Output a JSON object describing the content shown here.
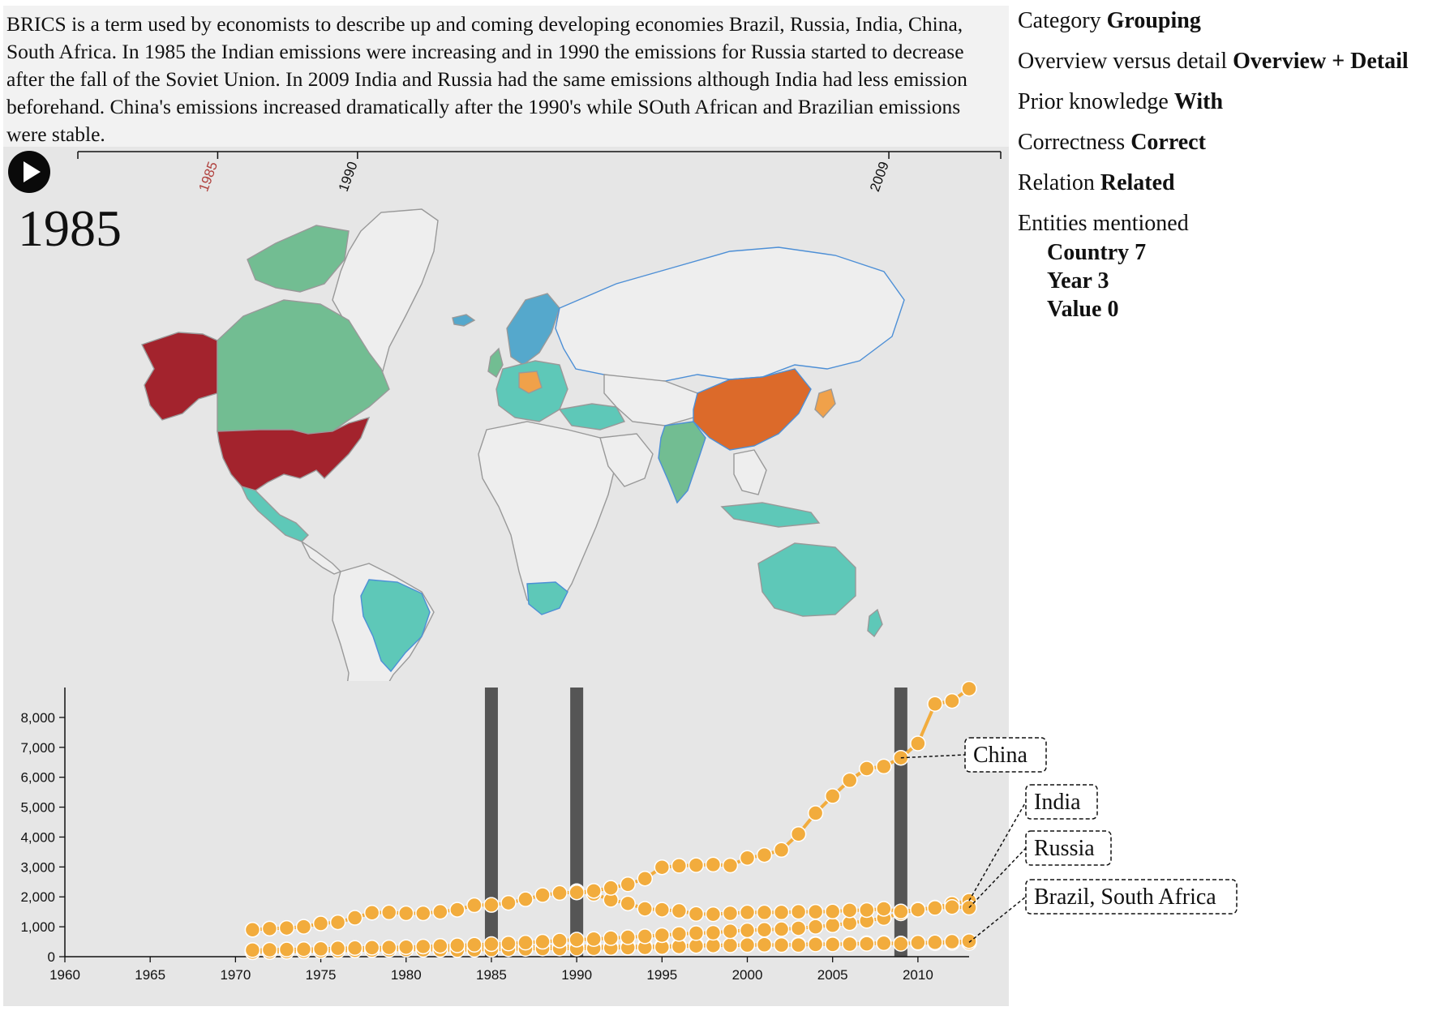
{
  "story": {
    "text": "BRICS is a term used by economists to describe up and coming developing economies Brazil, Russia, India, China, South Africa. In 1985 the Indian emissions were increasing and in 1990 the emissions for Russia started to decrease after the fall of the Soviet Union. In 2009 India and Russia had the same emissions although India had less emission beforehand. China's emissions increased dramatically after the 1990's while SOuth African and Brazilian emissions were stable."
  },
  "timeline": {
    "marks": [
      "1985",
      "1990",
      "2009"
    ],
    "active": "1985",
    "active_color": "#b0413e",
    "inactive_color": "#111111"
  },
  "current_year": "1985",
  "controls": {
    "play_icon": "play-icon"
  },
  "meta": {
    "category_label": "Category",
    "category_value": "Grouping",
    "overview_label": "Overview versus detail",
    "overview_value": "Overview + Detail",
    "prior_label": "Prior knowledge",
    "prior_value": "With",
    "correctness_label": "Correctness",
    "correctness_value": "Correct",
    "relation_label": "Relation",
    "relation_value": "Related",
    "entities_label": "Entities mentioned",
    "entities": [
      {
        "name": "Country",
        "count": "7"
      },
      {
        "name": "Year",
        "count": "3"
      },
      {
        "name": "Value",
        "count": "0"
      }
    ]
  },
  "map": {
    "colors": {
      "high": "#a3232d",
      "china": "#dc6a2a",
      "mid": "#f0a14a",
      "green": "#72bd92",
      "teal": "#5ec8b8",
      "blue": "#55a8cc",
      "none": "#eeeeee",
      "border": "#999999",
      "brics_border": "#4d8fd6"
    }
  },
  "chart_data": {
    "type": "line",
    "x_range": [
      1960,
      2013
    ],
    "ylim": [
      0,
      9000
    ],
    "x_ticks": [
      "1960",
      "1965",
      "1970",
      "1975",
      "1980",
      "1985",
      "1990",
      "1995",
      "2000",
      "2005",
      "2010"
    ],
    "y_ticks": [
      "0",
      "1,000",
      "2,000",
      "3,000",
      "4,000",
      "5,000",
      "6,000",
      "7,000",
      "8,000"
    ],
    "highlight_years": [
      1985,
      1990,
      2009
    ],
    "highlight_color": "#555555",
    "point_color": "#f2ac3d",
    "x": [
      1971,
      1972,
      1973,
      1974,
      1975,
      1976,
      1977,
      1978,
      1979,
      1980,
      1981,
      1982,
      1983,
      1984,
      1985,
      1986,
      1987,
      1988,
      1989,
      1990,
      1991,
      1992,
      1993,
      1994,
      1995,
      1996,
      1997,
      1998,
      1999,
      2000,
      2001,
      2002,
      2003,
      2004,
      2005,
      2006,
      2007,
      2008,
      2009,
      2010,
      2011,
      2012,
      2013
    ],
    "series": [
      {
        "name": "China",
        "values": [
          900,
          940,
          960,
          1000,
          1110,
          1150,
          1300,
          1470,
          1480,
          1450,
          1450,
          1500,
          1570,
          1720,
          1730,
          1800,
          1920,
          2060,
          2130,
          2150,
          2200,
          2300,
          2420,
          2610,
          2990,
          3040,
          3060,
          3080,
          3050,
          3300,
          3400,
          3570,
          4100,
          4800,
          5370,
          5900,
          6290,
          6360,
          6650,
          7130,
          8450,
          8550,
          8960
        ]
      },
      {
        "name": "Russia",
        "values": [
          null,
          null,
          null,
          null,
          null,
          null,
          null,
          null,
          null,
          null,
          null,
          null,
          null,
          null,
          null,
          null,
          null,
          null,
          null,
          2190,
          2100,
          1900,
          1780,
          1600,
          1570,
          1530,
          1430,
          1420,
          1450,
          1480,
          1480,
          1480,
          1500,
          1500,
          1510,
          1550,
          1560,
          1600,
          1510,
          1570,
          1630,
          1660,
          1640
        ]
      },
      {
        "name": "India",
        "values": [
          220,
          230,
          240,
          250,
          260,
          280,
          290,
          300,
          310,
          320,
          340,
          360,
          380,
          400,
          420,
          440,
          470,
          500,
          540,
          570,
          590,
          620,
          650,
          680,
          720,
          760,
          790,
          800,
          850,
          880,
          900,
          920,
          950,
          1000,
          1050,
          1120,
          1200,
          1290,
          1450,
          1580,
          1640,
          1770,
          1870
        ]
      },
      {
        "name": "Brazil",
        "values": [
          150,
          160,
          170,
          180,
          190,
          200,
          210,
          220,
          230,
          240,
          230,
          230,
          220,
          230,
          240,
          250,
          260,
          270,
          270,
          270,
          280,
          290,
          300,
          310,
          320,
          340,
          360,
          370,
          380,
          390,
          400,
          390,
          390,
          410,
          410,
          420,
          430,
          450,
          430,
          470,
          480,
          500,
          520
        ]
      },
      {
        "name": "South Africa",
        "values": [
          180,
          190,
          200,
          210,
          220,
          230,
          240,
          250,
          260,
          270,
          280,
          290,
          300,
          310,
          320,
          320,
          330,
          340,
          340,
          350,
          350,
          340,
          350,
          350,
          360,
          370,
          390,
          390,
          380,
          390,
          390,
          390,
          410,
          430,
          420,
          430,
          450,
          460,
          440,
          460,
          450,
          460,
          460
        ]
      }
    ],
    "labels": [
      {
        "text": "China"
      },
      {
        "text": "India"
      },
      {
        "text": "Russia"
      },
      {
        "text": "Brazil, South Africa"
      }
    ]
  }
}
